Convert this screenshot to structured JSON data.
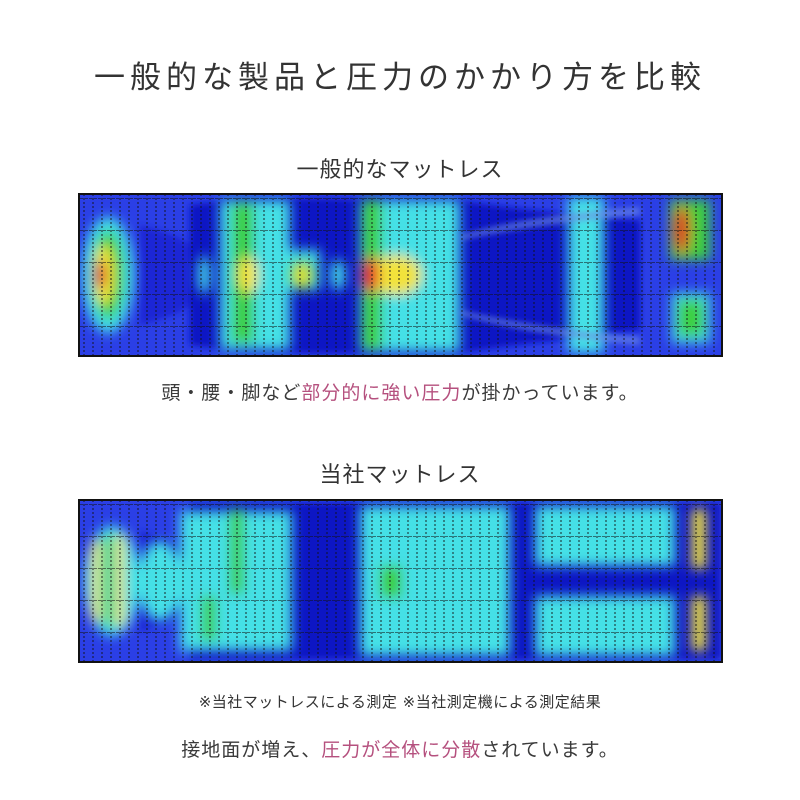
{
  "title": "一般的な製品と圧力のかかり方を比較",
  "comparison": [
    {
      "heading": "一般的なマットレス",
      "caption_parts": [
        "頭・腰・脚など",
        "部分的に強い圧力",
        "が掛かっています。"
      ]
    },
    {
      "heading": "当社マットレス",
      "note": "※当社マットレスによる測定 ※当社測定機による測定結果",
      "caption_parts": [
        "接地面が増え、",
        "圧力が全体に分散",
        "されています。"
      ]
    }
  ],
  "colors": {
    "text": "#333333",
    "highlight": "#b5507e",
    "pressure_low": "#2b3fe6",
    "pressure_body": "#0a14c4",
    "pressure_mid": "#45e0e6",
    "pressure_high_mid": "#3ccf3c",
    "pressure_high": "#f2e23a",
    "pressure_max": "#e0281e"
  }
}
